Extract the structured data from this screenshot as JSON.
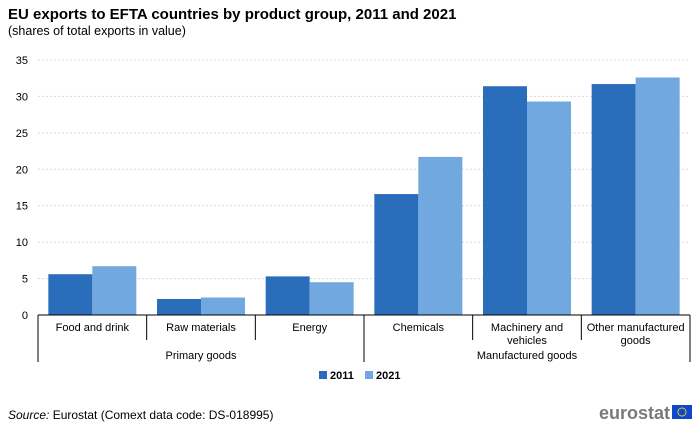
{
  "title": "EU exports to EFTA countries by product group, 2011 and 2021",
  "subtitle": "(shares of total exports in value)",
  "source": {
    "label": "Source:",
    "text": " Eurostat (Comext data code: DS-018995)"
  },
  "logo": {
    "text": "eurostat",
    "flag_icon": "eu-flag-icon"
  },
  "colors": {
    "series_2011": "#2a6ebb",
    "series_2021": "#71a8e0",
    "grid": "#d9d9d9",
    "axis": "#000000"
  },
  "chart_data": {
    "type": "bar",
    "title": "EU exports to EFTA countries by product group, 2011 and 2021",
    "subtitle": "(shares of total exports in value)",
    "categories": [
      "Food and drink",
      "Raw materials",
      "Energy",
      "Chemicals",
      "Machinery and vehicles",
      "Other manufactured goods"
    ],
    "groups": [
      {
        "label": "Primary goods",
        "categories": [
          "Food and drink",
          "Raw materials",
          "Energy"
        ]
      },
      {
        "label": "Manufactured goods",
        "categories": [
          "Chemicals",
          "Machinery and vehicles",
          "Other manufactured goods"
        ]
      }
    ],
    "series": [
      {
        "name": "2011",
        "values": [
          5.6,
          2.2,
          5.3,
          16.6,
          31.4,
          31.7
        ]
      },
      {
        "name": "2021",
        "values": [
          6.7,
          2.4,
          4.5,
          21.7,
          29.3,
          32.6
        ]
      }
    ],
    "ylim": [
      0,
      35
    ],
    "yticks": [
      0,
      5,
      10,
      15,
      20,
      25,
      30,
      35
    ],
    "grid": true,
    "legend": "bottom-center"
  }
}
